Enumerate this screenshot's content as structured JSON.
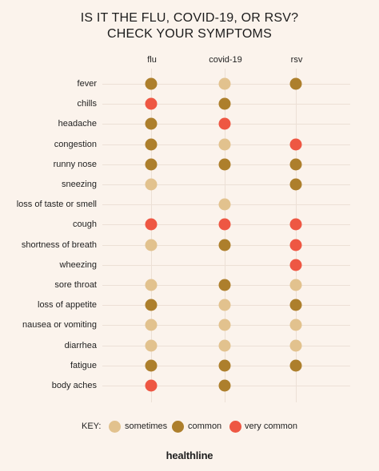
{
  "title": {
    "line1": "IS IT THE FLU, COVID-19, OR RSV?",
    "line2": "CHECK YOUR SYMPTOMS"
  },
  "columns": [
    "flu",
    "covid-19",
    "rsv"
  ],
  "levels": {
    "sometimes": "#e2c28e",
    "common": "#ad7f2c",
    "very_common": "#ee5743"
  },
  "symptoms": [
    {
      "label": "fever",
      "flu": "common",
      "covid": "sometimes",
      "rsv": "common"
    },
    {
      "label": "chills",
      "flu": "very_common",
      "covid": "common",
      "rsv": null
    },
    {
      "label": "headache",
      "flu": "common",
      "covid": "very_common",
      "rsv": null
    },
    {
      "label": "congestion",
      "flu": "common",
      "covid": "sometimes",
      "rsv": "very_common"
    },
    {
      "label": "runny nose",
      "flu": "common",
      "covid": "common",
      "rsv": "common"
    },
    {
      "label": "sneezing",
      "flu": "sometimes",
      "covid": null,
      "rsv": "common"
    },
    {
      "label": "loss of taste or smell",
      "flu": null,
      "covid": "sometimes",
      "rsv": null
    },
    {
      "label": "cough",
      "flu": "very_common",
      "covid": "very_common",
      "rsv": "very_common"
    },
    {
      "label": "shortness of breath",
      "flu": "sometimes",
      "covid": "common",
      "rsv": "very_common"
    },
    {
      "label": "wheezing",
      "flu": null,
      "covid": null,
      "rsv": "very_common"
    },
    {
      "label": "sore throat",
      "flu": "sometimes",
      "covid": "common",
      "rsv": "sometimes"
    },
    {
      "label": "loss of appetite",
      "flu": "common",
      "covid": "sometimes",
      "rsv": "common"
    },
    {
      "label": "nausea or vomiting",
      "flu": "sometimes",
      "covid": "sometimes",
      "rsv": "sometimes"
    },
    {
      "label": "diarrhea",
      "flu": "sometimes",
      "covid": "sometimes",
      "rsv": "sometimes"
    },
    {
      "label": "fatigue",
      "flu": "common",
      "covid": "common",
      "rsv": "common"
    },
    {
      "label": "body aches",
      "flu": "very_common",
      "covid": "common",
      "rsv": null
    }
  ],
  "key": {
    "label": "KEY:",
    "sometimes": "sometimes",
    "common": "common",
    "very_common": "very common"
  },
  "brand": "healthline"
}
